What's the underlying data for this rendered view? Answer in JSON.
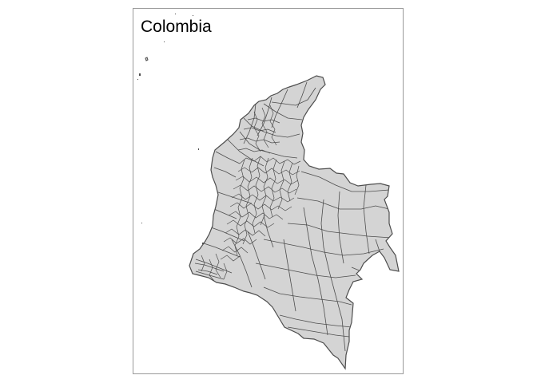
{
  "map": {
    "title": "Colombia",
    "fill_color": "#d4d4d4",
    "border_color": "#4d4d4d",
    "frame_color": "#9a9a9a",
    "background": "#ffffff"
  }
}
